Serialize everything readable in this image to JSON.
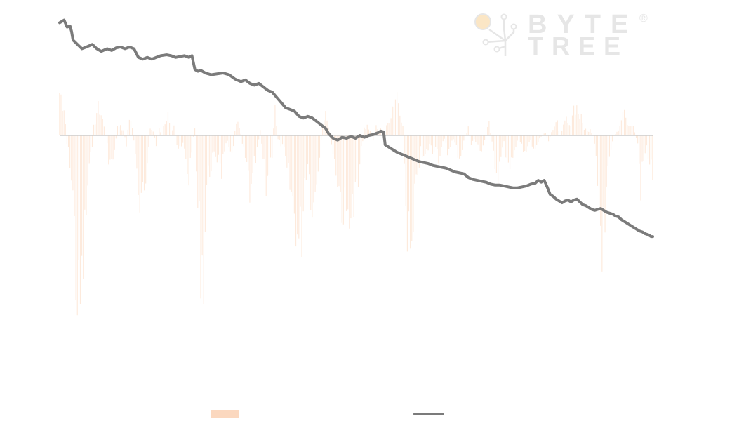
{
  "watermark": {
    "brand_line1": "BYTE",
    "brand_line2": "TREE",
    "registered_mark": "®",
    "color": "#e6e6e6",
    "dot_color": "#fbe6c5",
    "icon": "circuit-tree-icon"
  },
  "colors": {
    "bars": "#fbd8bf",
    "line": "#7b7b7b",
    "zero_line": "#cccccc"
  },
  "chart_data": {
    "type": "bar",
    "x_count": 400,
    "bar_series": {
      "name": "",
      "anchors": [
        [
          0,
          0.55
        ],
        [
          3,
          0.4
        ],
        [
          5,
          -0.1
        ],
        [
          7,
          -0.3
        ],
        [
          9,
          -0.7
        ],
        [
          11,
          -1.6
        ],
        [
          13,
          -2.2
        ],
        [
          15,
          -1.8
        ],
        [
          17,
          -1.2
        ],
        [
          19,
          -0.6
        ],
        [
          21,
          -0.3
        ],
        [
          23,
          0.1
        ],
        [
          25,
          0.3
        ],
        [
          27,
          0.35
        ],
        [
          29,
          0.2
        ],
        [
          31,
          0.0
        ],
        [
          33,
          -0.25
        ],
        [
          35,
          -0.35
        ],
        [
          37,
          -0.2
        ],
        [
          39,
          0.1
        ],
        [
          41,
          0.15
        ],
        [
          43,
          0.05
        ],
        [
          45,
          -0.1
        ],
        [
          47,
          0.25
        ],
        [
          49,
          0.1
        ],
        [
          51,
          -0.2
        ],
        [
          53,
          -0.9
        ],
        [
          55,
          -1.0
        ],
        [
          57,
          -0.7
        ],
        [
          59,
          -0.3
        ],
        [
          61,
          0.1
        ],
        [
          63,
          0.05
        ],
        [
          65,
          -0.1
        ],
        [
          67,
          0.1
        ],
        [
          69,
          0.0
        ],
        [
          71,
          0.2
        ],
        [
          73,
          0.25
        ],
        [
          75,
          0.0
        ],
        [
          77,
          0.1
        ],
        [
          79,
          -0.1
        ],
        [
          81,
          -0.2
        ],
        [
          83,
          -0.1
        ],
        [
          85,
          -0.3
        ],
        [
          87,
          -0.5
        ],
        [
          89,
          -0.15
        ],
        [
          91,
          0.1
        ],
        [
          93,
          -0.9
        ],
        [
          95,
          -1.4
        ],
        [
          97,
          -1.55
        ],
        [
          99,
          -0.6
        ],
        [
          101,
          -0.4
        ],
        [
          103,
          -0.25
        ],
        [
          105,
          -0.35
        ],
        [
          107,
          -0.2
        ],
        [
          109,
          -0.4
        ],
        [
          111,
          -0.15
        ],
        [
          113,
          -0.1
        ],
        [
          115,
          -0.3
        ],
        [
          117,
          -0.1
        ],
        [
          119,
          0.2
        ],
        [
          121,
          0.15
        ],
        [
          123,
          -0.1
        ],
        [
          125,
          -0.3
        ],
        [
          127,
          -0.5
        ],
        [
          129,
          -0.8
        ],
        [
          131,
          -0.4
        ],
        [
          133,
          -0.2
        ],
        [
          135,
          0.1
        ],
        [
          137,
          -0.3
        ],
        [
          139,
          -0.6
        ],
        [
          141,
          -0.4
        ],
        [
          143,
          -0.2
        ],
        [
          145,
          0.35
        ],
        [
          147,
          -0.05
        ],
        [
          149,
          -0.1
        ],
        [
          151,
          -0.2
        ],
        [
          153,
          -0.45
        ],
        [
          155,
          -0.6
        ],
        [
          157,
          -0.8
        ],
        [
          159,
          -1.0
        ],
        [
          161,
          -1.3
        ],
        [
          163,
          -1.1
        ],
        [
          165,
          -0.5
        ],
        [
          167,
          -0.3
        ],
        [
          169,
          -0.65
        ],
        [
          171,
          -0.85
        ],
        [
          173,
          -0.5
        ],
        [
          175,
          -0.2
        ],
        [
          177,
          0.1
        ],
        [
          179,
          0.25
        ],
        [
          181,
          0.15
        ],
        [
          183,
          -0.1
        ],
        [
          185,
          -0.3
        ],
        [
          187,
          -0.5
        ],
        [
          189,
          -0.7
        ],
        [
          191,
          -0.9
        ],
        [
          193,
          -1.0
        ],
        [
          195,
          -0.8
        ],
        [
          197,
          -0.95
        ],
        [
          199,
          -0.75
        ],
        [
          201,
          -0.6
        ],
        [
          203,
          -0.2
        ],
        [
          205,
          0.1
        ],
        [
          207,
          0.15
        ],
        [
          209,
          0.05
        ],
        [
          211,
          -0.05
        ],
        [
          213,
          0.1
        ],
        [
          215,
          0.05
        ],
        [
          217,
          0.1
        ],
        [
          219,
          0.05
        ],
        [
          221,
          0.15
        ],
        [
          223,
          0.3
        ],
        [
          225,
          0.45
        ],
        [
          227,
          0.55
        ],
        [
          229,
          0.4
        ],
        [
          231,
          0.1
        ],
        [
          233,
          -0.8
        ],
        [
          235,
          -1.3
        ],
        [
          237,
          -1.6
        ],
        [
          239,
          -0.9
        ],
        [
          241,
          -0.4
        ],
        [
          243,
          -0.2
        ],
        [
          245,
          -0.3
        ],
        [
          247,
          -0.2
        ],
        [
          249,
          -0.1
        ],
        [
          251,
          -0.2
        ],
        [
          253,
          -0.1
        ],
        [
          255,
          -0.25
        ],
        [
          257,
          -0.15
        ],
        [
          259,
          -0.05
        ],
        [
          261,
          -0.2
        ],
        [
          263,
          -0.1
        ],
        [
          265,
          -0.05
        ],
        [
          267,
          -0.15
        ],
        [
          269,
          -0.25
        ],
        [
          271,
          -0.15
        ],
        [
          273,
          0.0
        ],
        [
          275,
          0.1
        ],
        [
          277,
          -0.1
        ],
        [
          279,
          -0.05
        ],
        [
          281,
          -0.1
        ],
        [
          283,
          -0.2
        ],
        [
          285,
          -0.1
        ],
        [
          287,
          0.0
        ],
        [
          289,
          0.2
        ],
        [
          291,
          -0.1
        ],
        [
          293,
          -0.3
        ],
        [
          295,
          -0.45
        ],
        [
          297,
          -0.2
        ],
        [
          299,
          -0.1
        ],
        [
          301,
          -0.3
        ],
        [
          303,
          -0.5
        ],
        [
          305,
          -0.3
        ],
        [
          307,
          -0.1
        ],
        [
          309,
          0.0
        ],
        [
          311,
          -0.15
        ],
        [
          313,
          -0.25
        ],
        [
          315,
          -0.15
        ],
        [
          317,
          -0.05
        ],
        [
          319,
          -0.2
        ],
        [
          321,
          -0.1
        ],
        [
          323,
          -0.05
        ],
        [
          325,
          0.0
        ],
        [
          327,
          0.05
        ],
        [
          329,
          -0.1
        ],
        [
          331,
          0.05
        ],
        [
          333,
          0.1
        ],
        [
          335,
          0.15
        ],
        [
          337,
          0.0
        ],
        [
          339,
          0.1
        ],
        [
          341,
          0.2
        ],
        [
          343,
          0.1
        ],
        [
          345,
          0.3
        ],
        [
          347,
          0.4
        ],
        [
          349,
          0.3
        ],
        [
          351,
          0.2
        ],
        [
          353,
          0.1
        ],
        [
          355,
          0.05
        ],
        [
          357,
          0.1
        ],
        [
          359,
          0.0
        ],
        [
          361,
          -0.3
        ],
        [
          363,
          -0.9
        ],
        [
          365,
          -1.2
        ],
        [
          367,
          -1.3
        ],
        [
          369,
          -0.5
        ],
        [
          371,
          -0.2
        ],
        [
          373,
          0.0
        ],
        [
          375,
          0.05
        ],
        [
          377,
          0.1
        ],
        [
          379,
          0.3
        ],
        [
          381,
          0.2
        ],
        [
          383,
          0.1
        ],
        [
          385,
          0.15
        ],
        [
          387,
          0.05
        ],
        [
          389,
          -0.1
        ],
        [
          391,
          -0.6
        ],
        [
          393,
          -0.3
        ],
        [
          395,
          -0.15
        ],
        [
          397,
          -0.3
        ],
        [
          399,
          -0.45
        ]
      ]
    },
    "line_series": {
      "name": "",
      "points": [
        [
          0,
          1.3
        ],
        [
          3,
          1.33
        ],
        [
          5,
          1.25
        ],
        [
          7,
          1.26
        ],
        [
          8,
          1.2
        ],
        [
          9,
          1.1
        ],
        [
          12,
          1.05
        ],
        [
          15,
          1.0
        ],
        [
          18,
          1.02
        ],
        [
          22,
          1.05
        ],
        [
          25,
          1.0
        ],
        [
          28,
          0.97
        ],
        [
          32,
          1.0
        ],
        [
          35,
          0.98
        ],
        [
          38,
          1.01
        ],
        [
          41,
          1.02
        ],
        [
          44,
          1.0
        ],
        [
          47,
          1.02
        ],
        [
          50,
          1.0
        ],
        [
          53,
          0.9
        ],
        [
          56,
          0.88
        ],
        [
          59,
          0.9
        ],
        [
          62,
          0.88
        ],
        [
          65,
          0.9
        ],
        [
          68,
          0.92
        ],
        [
          72,
          0.93
        ],
        [
          75,
          0.92
        ],
        [
          78,
          0.9
        ],
        [
          81,
          0.91
        ],
        [
          84,
          0.92
        ],
        [
          87,
          0.9
        ],
        [
          89,
          0.92
        ],
        [
          91,
          0.76
        ],
        [
          93,
          0.74
        ],
        [
          95,
          0.75
        ],
        [
          98,
          0.72
        ],
        [
          102,
          0.7
        ],
        [
          106,
          0.71
        ],
        [
          110,
          0.72
        ],
        [
          114,
          0.7
        ],
        [
          118,
          0.65
        ],
        [
          122,
          0.62
        ],
        [
          125,
          0.64
        ],
        [
          128,
          0.6
        ],
        [
          131,
          0.58
        ],
        [
          134,
          0.6
        ],
        [
          137,
          0.56
        ],
        [
          140,
          0.52
        ],
        [
          143,
          0.5
        ],
        [
          146,
          0.44
        ],
        [
          149,
          0.38
        ],
        [
          152,
          0.32
        ],
        [
          155,
          0.3
        ],
        [
          158,
          0.28
        ],
        [
          161,
          0.22
        ],
        [
          164,
          0.2
        ],
        [
          167,
          0.22
        ],
        [
          170,
          0.2
        ],
        [
          173,
          0.16
        ],
        [
          176,
          0.12
        ],
        [
          179,
          0.08
        ],
        [
          181,
          0.02
        ],
        [
          184,
          -0.03
        ],
        [
          187,
          -0.05
        ],
        [
          190,
          -0.02
        ],
        [
          193,
          -0.03
        ],
        [
          196,
          -0.01
        ],
        [
          199,
          -0.03
        ],
        [
          202,
          0.0
        ],
        [
          205,
          -0.02
        ],
        [
          208,
          0.0
        ],
        [
          211,
          0.01
        ],
        [
          214,
          0.03
        ],
        [
          216,
          0.05
        ],
        [
          218,
          0.04
        ],
        [
          219,
          -0.1
        ],
        [
          221,
          -0.12
        ],
        [
          224,
          -0.15
        ],
        [
          227,
          -0.18
        ],
        [
          230,
          -0.2
        ],
        [
          233,
          -0.22
        ],
        [
          236,
          -0.24
        ],
        [
          239,
          -0.26
        ],
        [
          242,
          -0.28
        ],
        [
          245,
          -0.29
        ],
        [
          248,
          -0.3
        ],
        [
          251,
          -0.32
        ],
        [
          254,
          -0.33
        ],
        [
          257,
          -0.34
        ],
        [
          260,
          -0.35
        ],
        [
          263,
          -0.37
        ],
        [
          266,
          -0.39
        ],
        [
          269,
          -0.4
        ],
        [
          272,
          -0.41
        ],
        [
          275,
          -0.45
        ],
        [
          278,
          -0.47
        ],
        [
          281,
          -0.48
        ],
        [
          284,
          -0.49
        ],
        [
          287,
          -0.5
        ],
        [
          290,
          -0.52
        ],
        [
          293,
          -0.53
        ],
        [
          296,
          -0.53
        ],
        [
          299,
          -0.54
        ],
        [
          302,
          -0.55
        ],
        [
          305,
          -0.56
        ],
        [
          308,
          -0.56
        ],
        [
          311,
          -0.55
        ],
        [
          314,
          -0.54
        ],
        [
          317,
          -0.52
        ],
        [
          320,
          -0.51
        ],
        [
          322,
          -0.48
        ],
        [
          324,
          -0.5
        ],
        [
          326,
          -0.48
        ],
        [
          328,
          -0.55
        ],
        [
          330,
          -0.63
        ],
        [
          332,
          -0.65
        ],
        [
          334,
          -0.68
        ],
        [
          336,
          -0.7
        ],
        [
          338,
          -0.72
        ],
        [
          340,
          -0.7
        ],
        [
          342,
          -0.69
        ],
        [
          344,
          -0.71
        ],
        [
          346,
          -0.69
        ],
        [
          348,
          -0.68
        ],
        [
          350,
          -0.71
        ],
        [
          352,
          -0.74
        ],
        [
          354,
          -0.75
        ],
        [
          356,
          -0.77
        ],
        [
          358,
          -0.79
        ],
        [
          360,
          -0.8
        ],
        [
          362,
          -0.79
        ],
        [
          364,
          -0.78
        ],
        [
          366,
          -0.8
        ],
        [
          368,
          -0.82
        ],
        [
          370,
          -0.83
        ],
        [
          372,
          -0.84
        ],
        [
          374,
          -0.86
        ],
        [
          376,
          -0.87
        ],
        [
          378,
          -0.9
        ],
        [
          380,
          -0.92
        ],
        [
          382,
          -0.94
        ],
        [
          384,
          -0.96
        ],
        [
          386,
          -0.98
        ],
        [
          388,
          -1.0
        ],
        [
          390,
          -1.02
        ],
        [
          392,
          -1.03
        ],
        [
          394,
          -1.05
        ],
        [
          396,
          -1.06
        ],
        [
          398,
          -1.08
        ],
        [
          399,
          -1.08
        ]
      ]
    },
    "xlim": [
      0,
      399
    ],
    "ylim": [
      -2.3,
      1.4
    ],
    "grid": false,
    "legend_placement": "bottom-center",
    "legend": [
      "",
      ""
    ]
  }
}
